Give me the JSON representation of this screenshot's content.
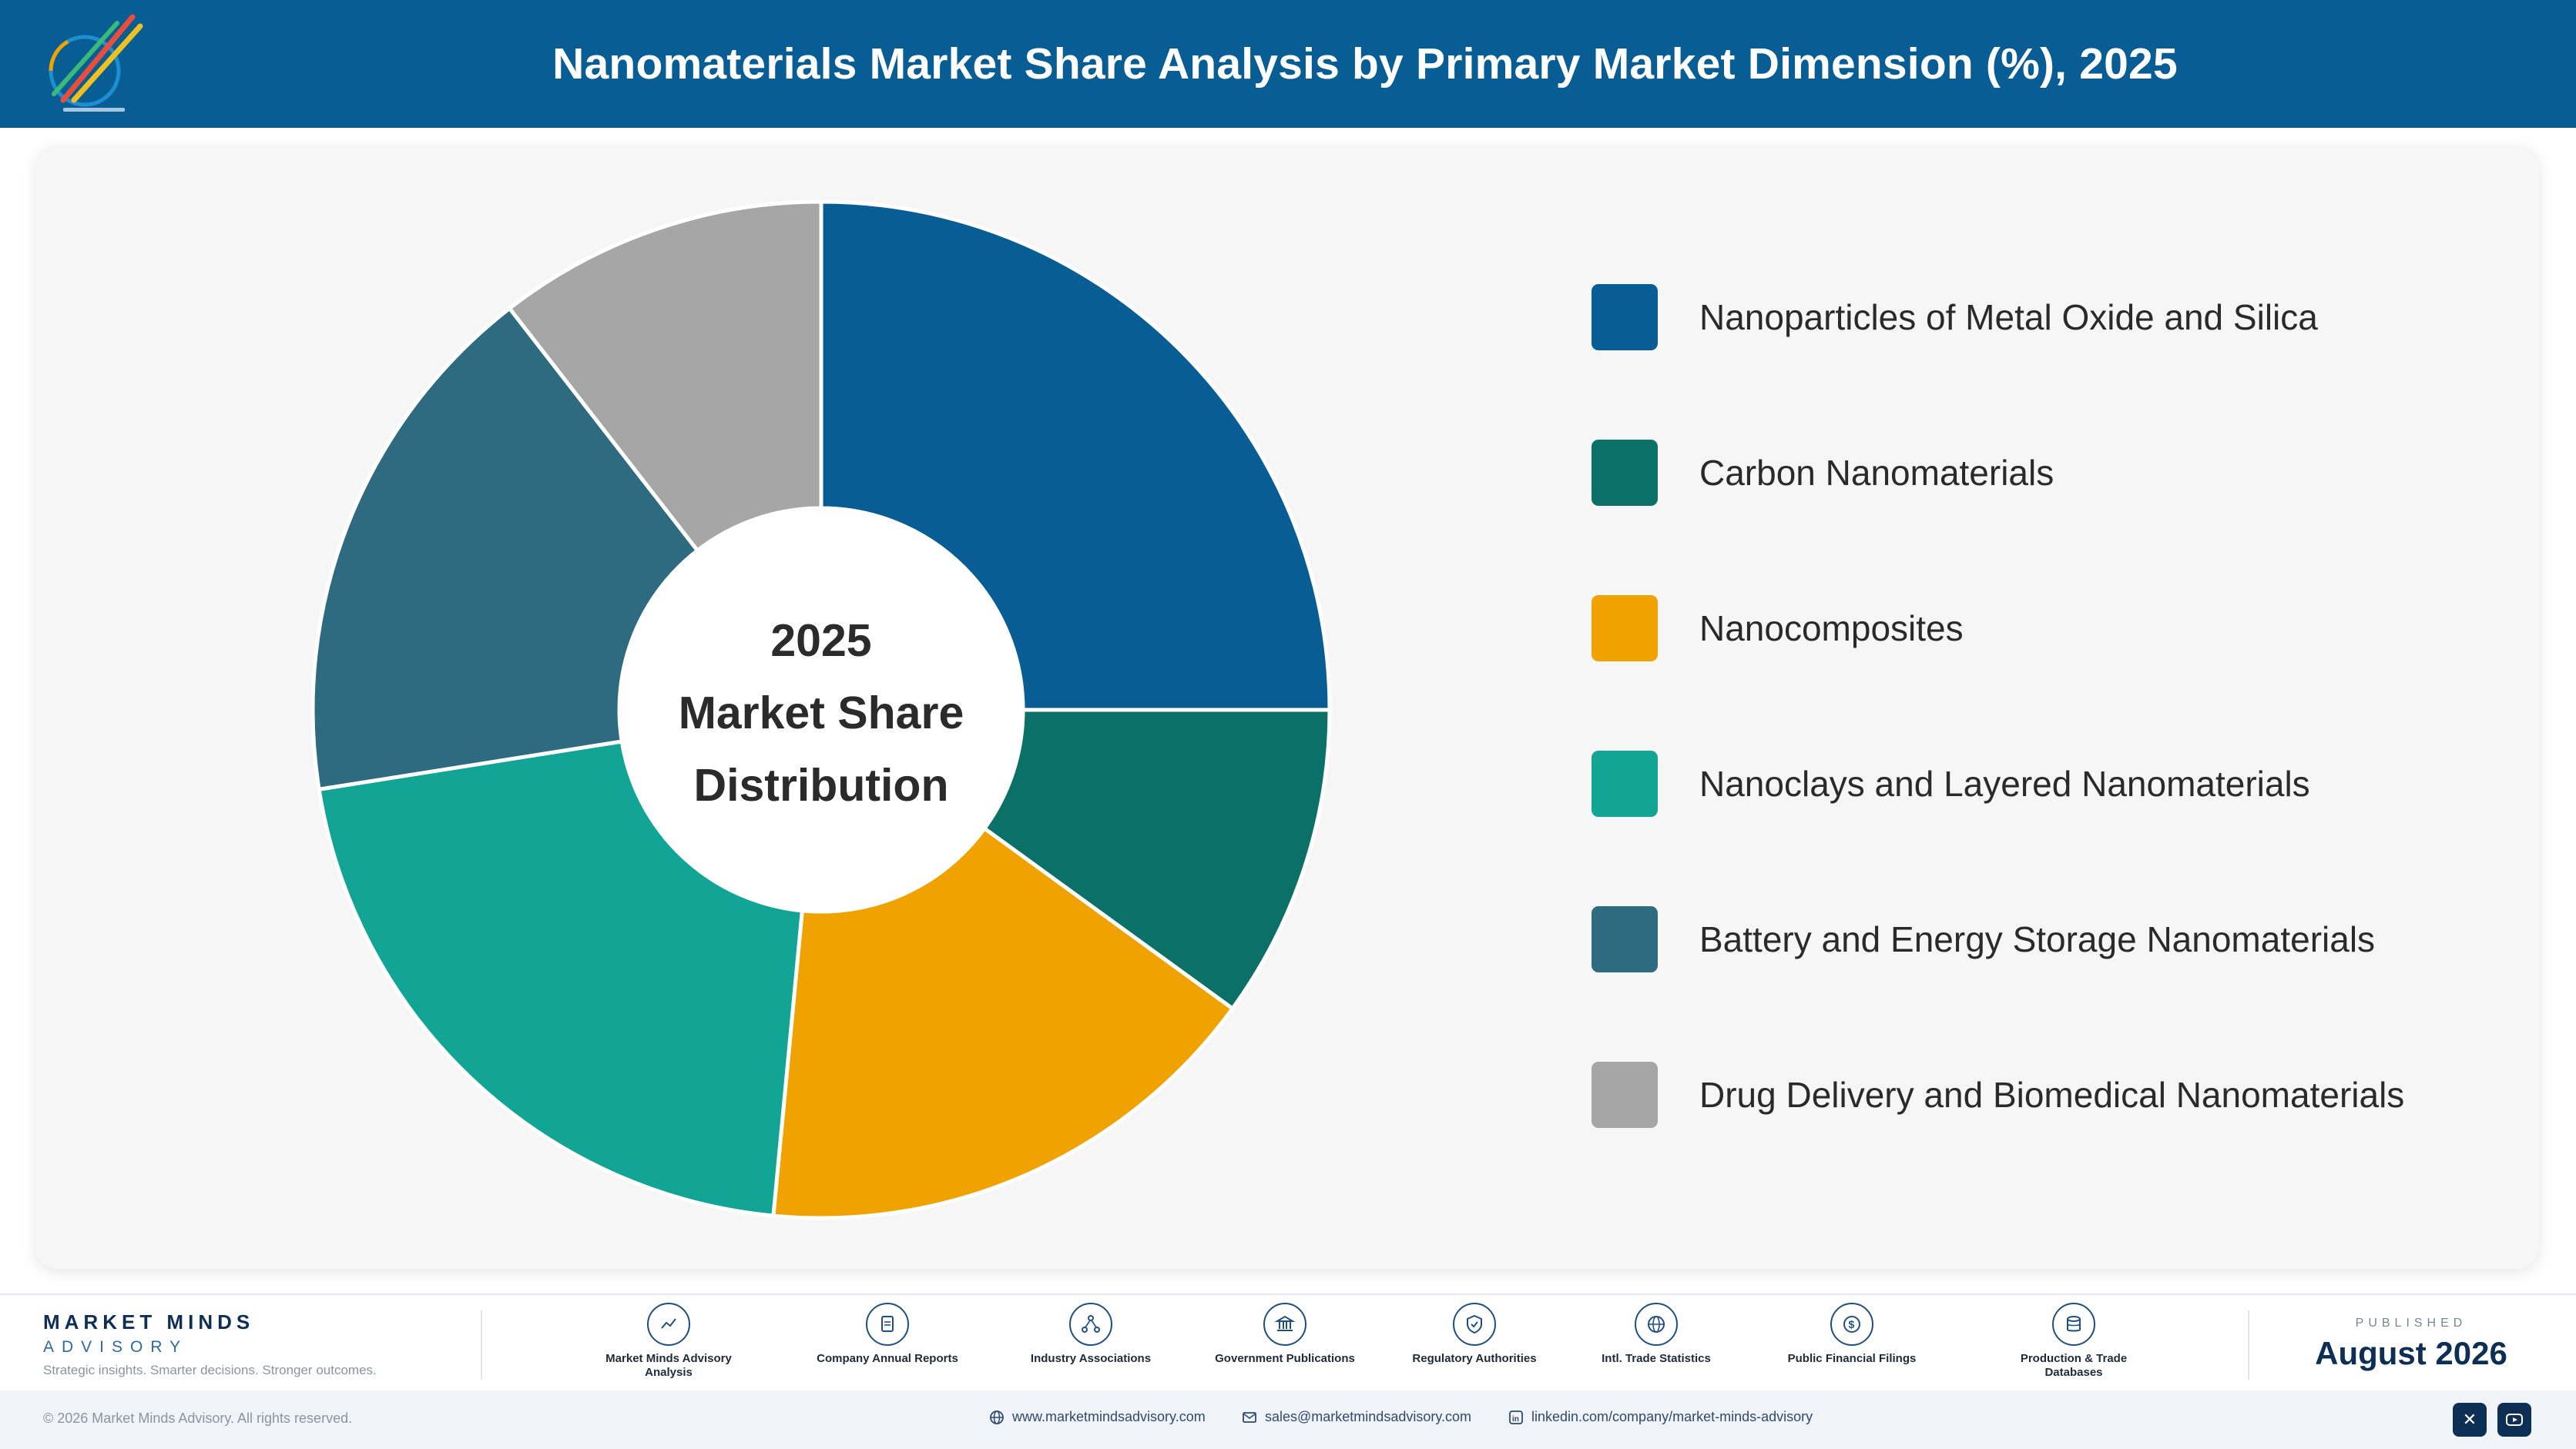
{
  "header": {
    "title": "Nanomaterials Market Share Analysis by Primary Market Dimension (%), 2025",
    "logo_icon": "market-minds-logo",
    "bg_color": "#085e94"
  },
  "chart_data": {
    "type": "pie",
    "variant": "donut",
    "title": "Nanomaterials Market Share Analysis by Primary Market Dimension (%), 2025",
    "center_label": [
      "2025",
      "Market Share",
      "Distribution"
    ],
    "legend_position": "right",
    "categories": [
      "Nanoparticles of Metal Oxide and Silica",
      "Carbon Nanomaterials",
      "Nanocomposites",
      "Nanoclays and Layered Nanomaterials",
      "Battery and Energy Storage Nanomaterials",
      "Drug Delivery and Biomedical Nanomaterials"
    ],
    "values": [
      25,
      10,
      16.5,
      21,
      17,
      10.5
    ],
    "colors": [
      "#085e94",
      "#0b7068",
      "#f0a300",
      "#12a595",
      "#2e6b80",
      "#a6a6a6"
    ]
  },
  "footer": {
    "brand_name": "MARKET MINDS",
    "brand_sub": "ADVISORY",
    "tagline": "Strategic insights. Smarter decisions. Stronger outcomes.",
    "sources": [
      {
        "label": "Market Minds Advisory Analysis",
        "icon": "chart-line-icon"
      },
      {
        "label": "Company Annual Reports",
        "icon": "document-icon"
      },
      {
        "label": "Industry Associations",
        "icon": "network-icon"
      },
      {
        "label": "Government Publications",
        "icon": "building-icon"
      },
      {
        "label": "Regulatory Authorities",
        "icon": "shield-check-icon"
      },
      {
        "label": "Intl. Trade Statistics",
        "icon": "globe-icon"
      },
      {
        "label": "Public Financial Filings",
        "icon": "dollar-coin-icon"
      },
      {
        "label": "Production & Trade Databases",
        "icon": "database-icon"
      }
    ],
    "published_label": "PUBLISHED",
    "published_date": "August 2026",
    "copyright": "© 2026 Market Minds Advisory. All rights reserved.",
    "website": "www.marketmindsadvisory.com",
    "email": "sales@marketmindsadvisory.com",
    "linkedin": "linkedin.com/company/market-minds-advisory",
    "social": [
      {
        "icon": "x-icon"
      },
      {
        "icon": "youtube-icon"
      }
    ]
  }
}
